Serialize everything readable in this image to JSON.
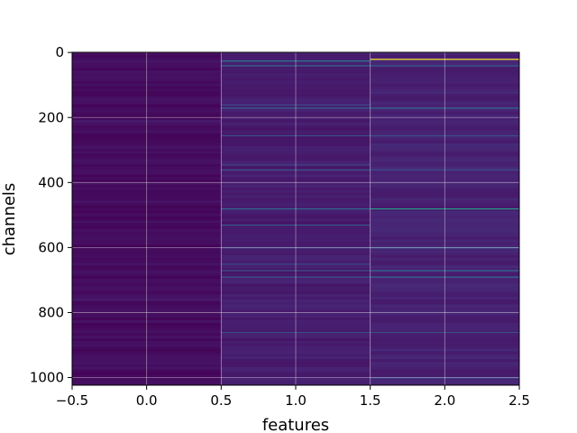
{
  "chart_data": {
    "type": "heatmap",
    "xlabel": "features",
    "ylabel": "channels",
    "xlim": [
      -0.5,
      2.5
    ],
    "ylim": [
      1023.5,
      -0.5
    ],
    "y_inverted": true,
    "x_ticks": [
      -0.5,
      0.0,
      0.5,
      1.0,
      1.5,
      2.0,
      2.5
    ],
    "x_tick_labels": [
      "−0.5",
      "0.0",
      "0.5",
      "1.0",
      "1.5",
      "2.0",
      "2.5"
    ],
    "y_ticks": [
      0,
      200,
      400,
      600,
      800,
      1000
    ],
    "y_tick_labels": [
      "0",
      "200",
      "400",
      "600",
      "800",
      "1000"
    ],
    "grid": true,
    "colormap": "viridis",
    "columns": [
      {
        "feature": 0,
        "base_value": 0.04,
        "highlight_rows": [
          {
            "channel": 210,
            "value": 0.12
          },
          {
            "channel": 520,
            "value": 0.1
          },
          {
            "channel": 760,
            "value": 0.12
          },
          {
            "channel": 900,
            "value": 0.1
          }
        ]
      },
      {
        "feature": 1,
        "base_value": 0.1,
        "highlight_rows": [
          {
            "channel": 25,
            "value": 0.5
          },
          {
            "channel": 40,
            "value": 0.45
          },
          {
            "channel": 160,
            "value": 0.3
          },
          {
            "channel": 170,
            "value": 0.42
          },
          {
            "channel": 255,
            "value": 0.3
          },
          {
            "channel": 345,
            "value": 0.28
          },
          {
            "channel": 360,
            "value": 0.32
          },
          {
            "channel": 480,
            "value": 0.42
          },
          {
            "channel": 530,
            "value": 0.35
          },
          {
            "channel": 600,
            "value": 0.3
          },
          {
            "channel": 650,
            "value": 0.3
          },
          {
            "channel": 670,
            "value": 0.32
          },
          {
            "channel": 690,
            "value": 0.35
          },
          {
            "channel": 860,
            "value": 0.3
          }
        ]
      },
      {
        "feature": 2,
        "base_value": 0.12,
        "highlight_rows": [
          {
            "channel": 20,
            "value": 1.0
          },
          {
            "channel": 40,
            "value": 0.4
          },
          {
            "channel": 170,
            "value": 0.45
          },
          {
            "channel": 255,
            "value": 0.3
          },
          {
            "channel": 360,
            "value": 0.3
          },
          {
            "channel": 480,
            "value": 0.7
          },
          {
            "channel": 600,
            "value": 0.4
          },
          {
            "channel": 670,
            "value": 0.45
          },
          {
            "channel": 690,
            "value": 0.4
          },
          {
            "channel": 860,
            "value": 0.3
          },
          {
            "channel": 1000,
            "value": 0.3
          }
        ]
      }
    ]
  }
}
